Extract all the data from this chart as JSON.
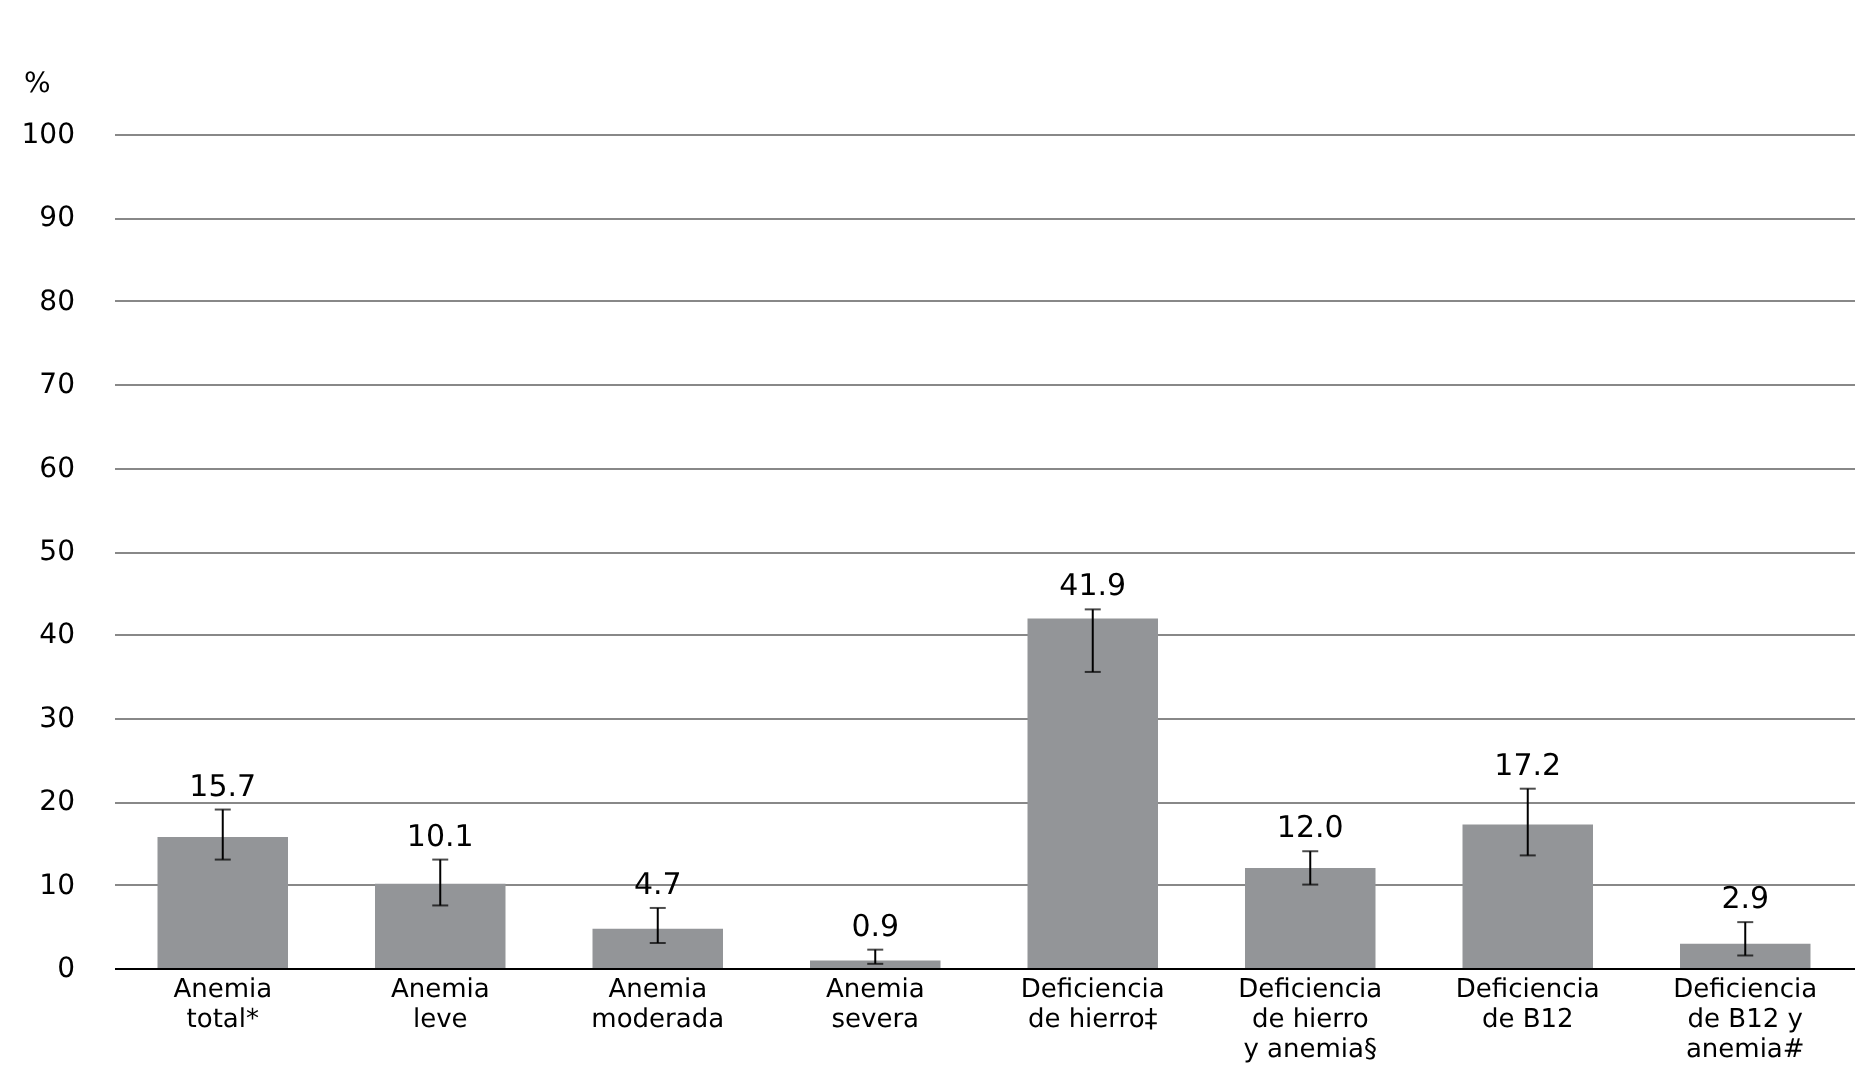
{
  "chart_data": {
    "type": "bar",
    "ylabel": "%",
    "categories": [
      "Anemia\ntotal*",
      "Anemia\nleve",
      "Anemia\nmoderada",
      "Anemia\nsevera",
      "Deficiencia\nde hierro‡",
      "Deficiencia\nde hierro\ny anemia§",
      "Deficiencia\nde B12",
      "Deficiencia\nde B12 y\nanemia#"
    ],
    "values": [
      15.7,
      10.1,
      4.7,
      0.9,
      41.9,
      12.0,
      17.2,
      2.9
    ],
    "errors": [
      [
        13,
        19
      ],
      [
        7.5,
        13
      ],
      [
        3,
        7.2
      ],
      [
        0.5,
        2.2
      ],
      [
        35.5,
        43
      ],
      [
        10,
        14
      ],
      [
        13.5,
        21.5
      ],
      [
        1.5,
        5.5
      ]
    ],
    "color": "#939598",
    "value_labels": [
      "15.7",
      "10.1",
      "4.7",
      "0.9",
      "41.9",
      "12.0",
      "17.2",
      "2.9"
    ],
    "ylim": [
      0,
      100
    ],
    "yticks": [
      0,
      10,
      20,
      30,
      40,
      50,
      60,
      70,
      80,
      90,
      100
    ],
    "grid": "y"
  }
}
